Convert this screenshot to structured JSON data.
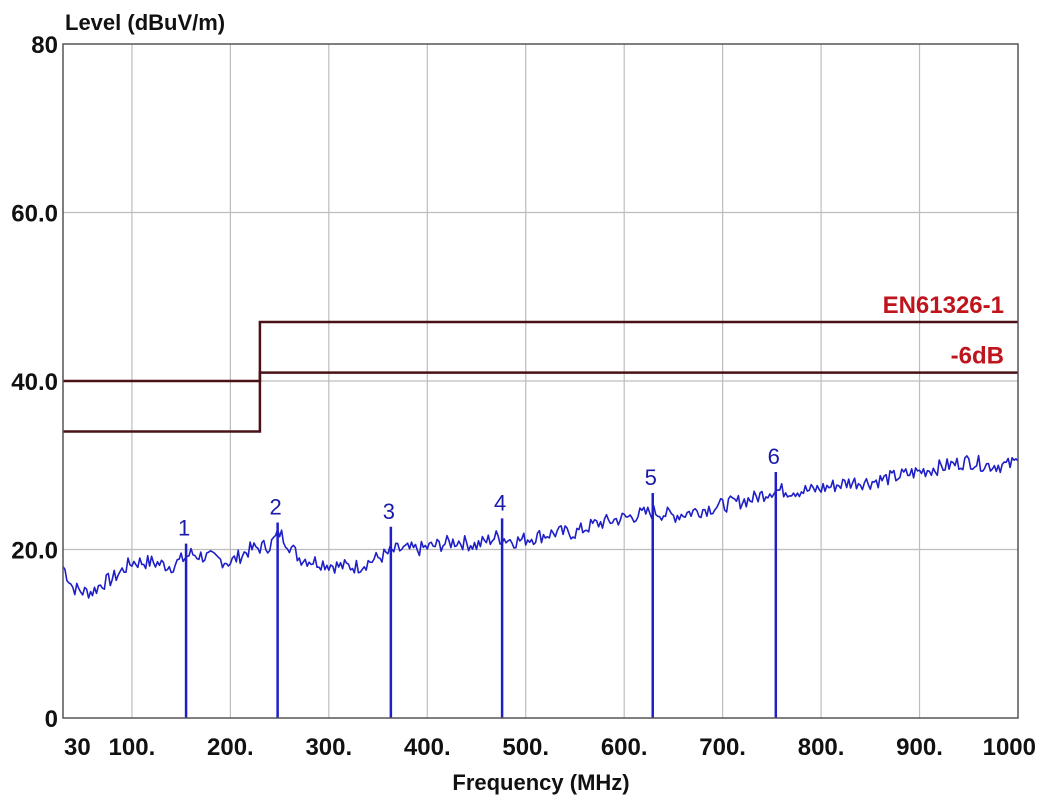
{
  "chart_data": {
    "type": "line",
    "ylabel": "Level (dBuV/m)",
    "xlabel": "Frequency (MHz)",
    "xlim": [
      30,
      1000
    ],
    "ylim": [
      0,
      80
    ],
    "x_ticks": [
      {
        "value": 30,
        "label": "30"
      },
      {
        "value": 100,
        "label": "100."
      },
      {
        "value": 200,
        "label": "200."
      },
      {
        "value": 300,
        "label": "300."
      },
      {
        "value": 400,
        "label": "400."
      },
      {
        "value": 500,
        "label": "500."
      },
      {
        "value": 600,
        "label": "600."
      },
      {
        "value": 700,
        "label": "700."
      },
      {
        "value": 800,
        "label": "800."
      },
      {
        "value": 900,
        "label": "900."
      },
      {
        "value": 1000,
        "label": "1000"
      }
    ],
    "y_ticks": [
      {
        "value": 0,
        "label": "0"
      },
      {
        "value": 20,
        "label": "20.0"
      },
      {
        "value": 40,
        "label": "40.0"
      },
      {
        "value": 60,
        "label": "60.0"
      },
      {
        "value": 80,
        "label": "80"
      }
    ],
    "grid": true,
    "limit_lines": [
      {
        "name": "EN61326-1",
        "color": "#c0141c",
        "points": [
          [
            30,
            40
          ],
          [
            230,
            40
          ],
          [
            230,
            47
          ],
          [
            1000,
            47
          ]
        ]
      },
      {
        "name": "-6dB",
        "color": "#c0141c",
        "points": [
          [
            30,
            34
          ],
          [
            230,
            34
          ],
          [
            230,
            41
          ],
          [
            1000,
            41
          ]
        ]
      }
    ],
    "trace": {
      "color": "#1f1fc8",
      "points": [
        [
          30,
          18
        ],
        [
          40,
          15.5
        ],
        [
          50,
          15
        ],
        [
          60,
          15
        ],
        [
          70,
          16
        ],
        [
          80,
          16.5
        ],
        [
          90,
          17.5
        ],
        [
          100,
          18.5
        ],
        [
          120,
          18.5
        ],
        [
          140,
          18
        ],
        [
          160,
          19.5
        ],
        [
          180,
          19
        ],
        [
          200,
          18.5
        ],
        [
          220,
          20
        ],
        [
          240,
          20.5
        ],
        [
          250,
          22
        ],
        [
          270,
          19
        ],
        [
          290,
          18.5
        ],
        [
          310,
          18
        ],
        [
          330,
          18
        ],
        [
          350,
          19
        ],
        [
          370,
          20
        ],
        [
          390,
          20
        ],
        [
          410,
          20.5
        ],
        [
          430,
          21
        ],
        [
          450,
          20.5
        ],
        [
          470,
          21.5
        ],
        [
          490,
          21
        ],
        [
          510,
          21.5
        ],
        [
          530,
          22
        ],
        [
          550,
          22
        ],
        [
          570,
          23
        ],
        [
          590,
          23.5
        ],
        [
          610,
          24
        ],
        [
          630,
          24.5
        ],
        [
          650,
          24
        ],
        [
          670,
          24.5
        ],
        [
          690,
          25
        ],
        [
          710,
          25.5
        ],
        [
          730,
          26
        ],
        [
          750,
          27
        ],
        [
          770,
          27
        ],
        [
          790,
          27
        ],
        [
          810,
          27.5
        ],
        [
          830,
          28
        ],
        [
          850,
          28
        ],
        [
          870,
          28.5
        ],
        [
          890,
          29
        ],
        [
          910,
          29.5
        ],
        [
          930,
          30
        ],
        [
          950,
          30.5
        ],
        [
          970,
          30
        ],
        [
          990,
          30
        ],
        [
          1000,
          30.5
        ]
      ]
    },
    "markers": [
      {
        "label": "1",
        "x": 155,
        "y": 19.5
      },
      {
        "label": "2",
        "x": 248,
        "y": 22
      },
      {
        "label": "3",
        "x": 363,
        "y": 21.5
      },
      {
        "label": "4",
        "x": 476,
        "y": 22.5
      },
      {
        "label": "5",
        "x": 629,
        "y": 25.5
      },
      {
        "label": "6",
        "x": 754,
        "y": 28
      }
    ]
  }
}
